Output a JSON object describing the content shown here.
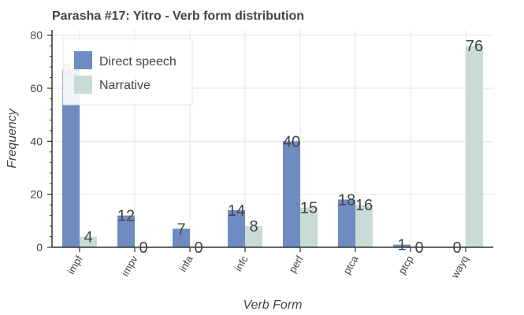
{
  "chart_data": {
    "type": "bar",
    "title": "Parasha #17: Yitro - Verb form distribution",
    "xlabel": "Verb Form",
    "ylabel": "Frequency",
    "categories": [
      "impf",
      "impv",
      "infa",
      "infc",
      "perf",
      "ptca",
      "ptcp",
      "wayq"
    ],
    "series": [
      {
        "name": "Direct speech",
        "color": "#6f8cc1",
        "values": [
          67,
          12,
          7,
          14,
          40,
          18,
          1,
          0
        ]
      },
      {
        "name": "Narrative",
        "color": "#c9dbd5",
        "values": [
          4,
          0,
          0,
          8,
          15,
          16,
          0,
          76
        ]
      }
    ],
    "ylim": [
      0,
      82
    ],
    "yticks": [
      0,
      20,
      40,
      60,
      80
    ],
    "y_minor_step": 4,
    "grid": true,
    "legend_position": "top-left"
  }
}
